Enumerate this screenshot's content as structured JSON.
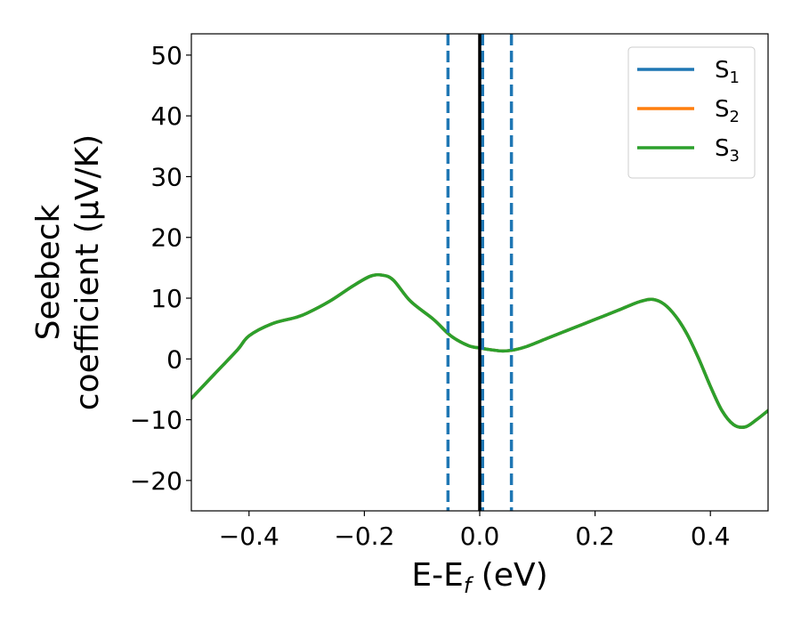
{
  "chart_data": {
    "type": "line",
    "xlabel": "E-E",
    "xlabel_sub": "f",
    "xlabel_unit": " (eV)",
    "ylabel_line1": "Seebeck",
    "ylabel_line2": "coefficient  (μV/K)",
    "xlim": [
      -0.5,
      0.5
    ],
    "ylim": [
      -25,
      53.5
    ],
    "xticks": [
      -0.4,
      -0.2,
      0.0,
      0.2,
      0.4
    ],
    "xtick_labels": [
      "−0.4",
      "−0.2",
      "0.0",
      "0.2",
      "0.4"
    ],
    "yticks": [
      -20,
      -10,
      0,
      10,
      20,
      30,
      40,
      50
    ],
    "ytick_labels": [
      "−20",
      "−10",
      "0",
      "10",
      "20",
      "30",
      "40",
      "50"
    ],
    "legend_position": "top-right",
    "vlines": [
      {
        "x": -0.055,
        "style": "dashed",
        "color": "#1f77b4"
      },
      {
        "x": 0.005,
        "style": "dashed",
        "color": "#1f77b4"
      },
      {
        "x": 0.055,
        "style": "dashed",
        "color": "#1f77b4"
      },
      {
        "x": 0.0,
        "style": "solid",
        "color": "#000000"
      }
    ],
    "x": [
      -0.5,
      -0.46,
      -0.42,
      -0.4,
      -0.36,
      -0.32,
      -0.3,
      -0.26,
      -0.22,
      -0.19,
      -0.17,
      -0.15,
      -0.12,
      -0.08,
      -0.05,
      -0.02,
      0.0,
      0.02,
      0.04,
      0.06,
      0.08,
      0.12,
      0.16,
      0.2,
      0.24,
      0.26,
      0.28,
      0.3,
      0.32,
      0.34,
      0.36,
      0.38,
      0.4,
      0.42,
      0.44,
      0.46,
      0.48,
      0.5
    ],
    "series": [
      {
        "name": "S",
        "sub": "1",
        "color": "#1f77b4",
        "values": [
          -6.5,
          -2.5,
          1.5,
          3.8,
          5.8,
          6.8,
          7.5,
          9.5,
          12.0,
          13.6,
          13.8,
          13.0,
          9.5,
          6.5,
          3.8,
          2.2,
          1.8,
          1.5,
          1.3,
          1.5,
          2.0,
          3.5,
          5.0,
          6.5,
          8.0,
          8.8,
          9.5,
          9.8,
          9.0,
          7.0,
          4.0,
          0.0,
          -4.5,
          -8.5,
          -10.8,
          -11.2,
          -10.0,
          -8.5
        ]
      },
      {
        "name": "S",
        "sub": "2",
        "color": "#ff7f0e",
        "values": [
          -6.5,
          -2.5,
          1.5,
          3.8,
          5.8,
          6.8,
          7.5,
          9.5,
          12.0,
          13.6,
          13.8,
          13.0,
          9.5,
          6.5,
          3.8,
          2.2,
          1.8,
          1.5,
          1.3,
          1.5,
          2.0,
          3.5,
          5.0,
          6.5,
          8.0,
          8.8,
          9.5,
          9.8,
          9.0,
          7.0,
          4.0,
          0.0,
          -4.5,
          -8.5,
          -10.8,
          -11.2,
          -10.0,
          -8.5
        ]
      },
      {
        "name": "S",
        "sub": "3",
        "color": "#2ca02c",
        "values": [
          -6.5,
          -2.5,
          1.5,
          3.8,
          5.8,
          6.8,
          7.5,
          9.5,
          12.0,
          13.6,
          13.8,
          13.0,
          9.5,
          6.5,
          3.8,
          2.2,
          1.8,
          1.5,
          1.3,
          1.5,
          2.0,
          3.5,
          5.0,
          6.5,
          8.0,
          8.8,
          9.5,
          9.8,
          9.0,
          7.0,
          4.0,
          0.0,
          -4.5,
          -8.5,
          -10.8,
          -11.2,
          -10.0,
          -8.5
        ]
      }
    ]
  }
}
